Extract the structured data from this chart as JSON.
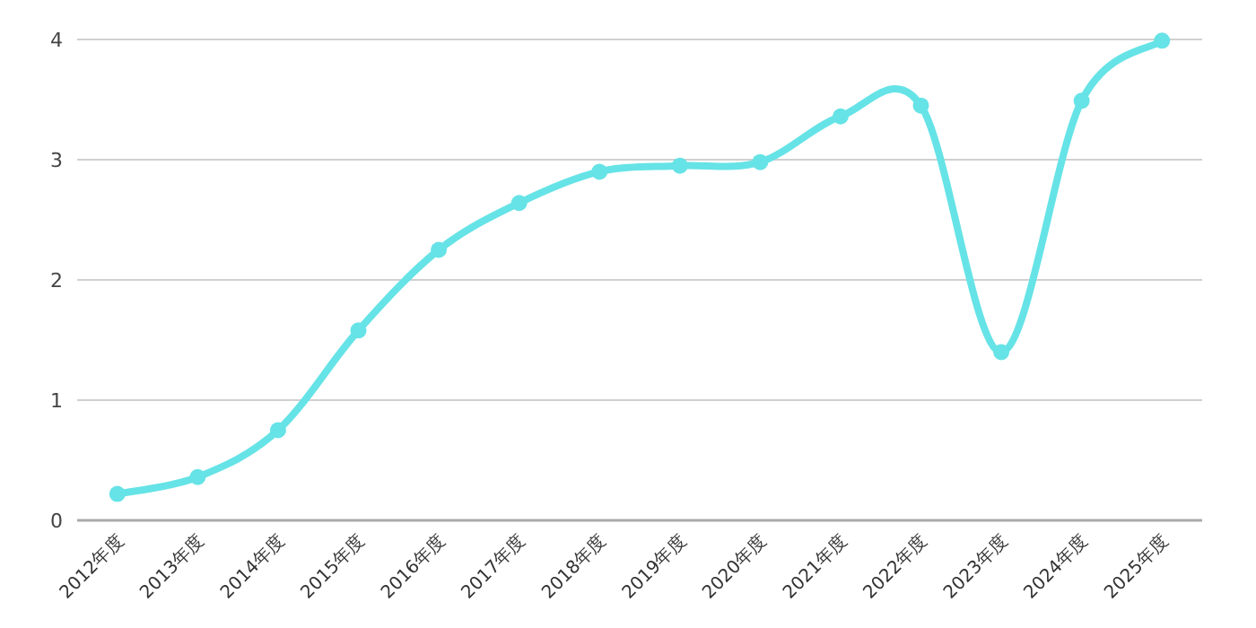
{
  "chart_data": {
    "type": "line",
    "categories": [
      "2012年度",
      "2013年度",
      "2014年度",
      "2015年度",
      "2016年度",
      "2017年度",
      "2018年度",
      "2019年度",
      "2020年度",
      "2021年度",
      "2022年度",
      "2023年度",
      "2024年度",
      "2025年度"
    ],
    "series": [
      {
        "color": "#66e3e6",
        "values": [
          0.22,
          0.36,
          0.75,
          1.58,
          2.25,
          2.64,
          2.9,
          2.95,
          2.98,
          3.36,
          3.45,
          1.4,
          3.49,
          3.99
        ]
      }
    ],
    "ylim": [
      0,
      4
    ],
    "yticks": [
      0,
      1,
      2,
      3,
      4
    ],
    "grid": "y",
    "marker": "circle",
    "line_style": "solid"
  }
}
